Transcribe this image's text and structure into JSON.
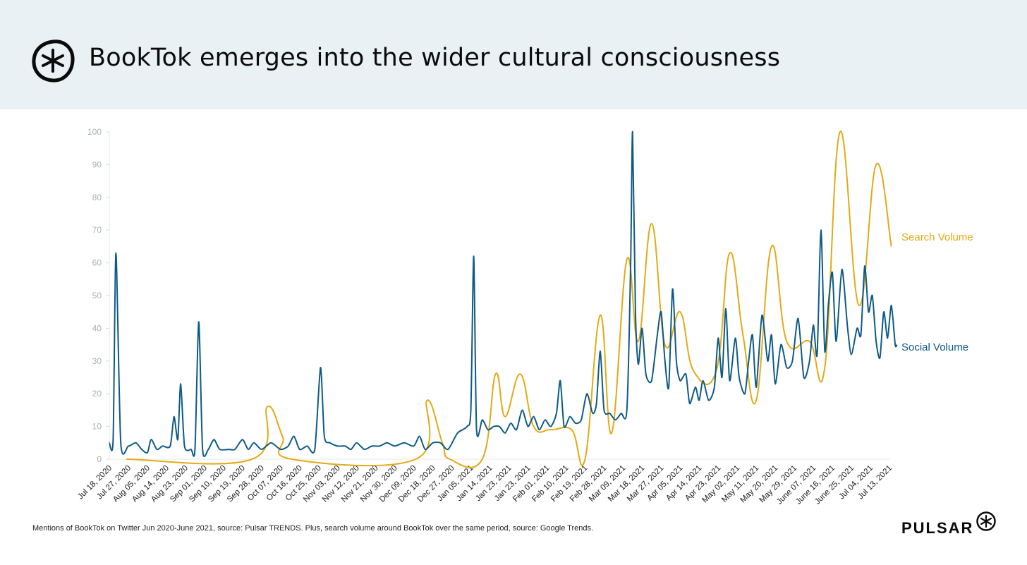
{
  "header": {
    "title": "BookTok emerges into the wider cultural consciousness",
    "logo_icon": "pulsar-burst-logo-icon"
  },
  "footer": {
    "note": "Mentions of BookTok on Twitter Jun 2020-June 2021, source: Pulsar TRENDS. Plus, search volume around BookTok over the same period, source: Google Trends.",
    "brand": "PULSAR",
    "brand_icon": "pulsar-burst-icon"
  },
  "colors": {
    "search": "#e2aa14",
    "social": "#0e5a85",
    "header_bg": "#e9f1f4"
  },
  "chart_data": {
    "type": "line",
    "ylim": [
      0,
      100
    ],
    "yticks": [
      0,
      10,
      20,
      30,
      40,
      50,
      60,
      70,
      80,
      90,
      100
    ],
    "xlabels": [
      "Jul 18, 2020",
      "Jul 27, 2020",
      "Aug 05, 2020",
      "Aug 14, 2020",
      "Aug 23, 2020",
      "Sep 01, 2020",
      "Sep 10, 2020",
      "Sep 19, 2020",
      "Sep 28, 2020",
      "Oct 07, 2020",
      "Oct 16, 2020",
      "Oct 25, 2020",
      "Nov 03, 2020",
      "Nov 12, 2020",
      "Nov 21, 2020",
      "Nov 30, 2020",
      "Dec 09, 2020",
      "Dec 18, 2020",
      "Dec 27, 2020",
      "Jan 05, 2021",
      "Jan 14, 2021",
      "Jan 23, 2021",
      "Jan 23, 2021",
      "Feb 01, 2021",
      "Feb 10, 2021",
      "Feb 19, 2021",
      "Feb 28, 2021",
      "Mar 09, 2021",
      "Mar 18, 2021",
      "Mar 27, 2021",
      "Apr 05, 2021",
      "Apr 14, 2021",
      "Apr 23, 2021",
      "May 02, 2021",
      "May 11, 2021",
      "May 20, 2021",
      "May 29, 2021",
      "June 07, 2021",
      "June 16, 2021",
      "June 25, 2021",
      "Jul 04, 2021",
      "Jul 13, 2021"
    ],
    "grid": false,
    "legend": "right",
    "series": [
      {
        "name": "Search Volume",
        "color": "#e2aa14",
        "points": [
          [
            0.9,
            0
          ],
          [
            7.5,
            0
          ],
          [
            8.3,
            16
          ],
          [
            9.1,
            7
          ],
          [
            9.6,
            0
          ],
          [
            16.1,
            0
          ],
          [
            16.7,
            18
          ],
          [
            17.5,
            5
          ],
          [
            17.9,
            0
          ],
          [
            19.6,
            0
          ],
          [
            20.3,
            26
          ],
          [
            20.8,
            13
          ],
          [
            21.6,
            26
          ],
          [
            22.3,
            10
          ],
          [
            23.2,
            9
          ],
          [
            24.3,
            9
          ],
          [
            25.0,
            0
          ],
          [
            25.8,
            44
          ],
          [
            26.4,
            8
          ],
          [
            27.2,
            61
          ],
          [
            27.8,
            36
          ],
          [
            28.5,
            72
          ],
          [
            29.2,
            35
          ],
          [
            30.0,
            45
          ],
          [
            30.7,
            27
          ],
          [
            31.9,
            27
          ],
          [
            32.6,
            63
          ],
          [
            33.3,
            38
          ],
          [
            34.0,
            18
          ],
          [
            34.8,
            65
          ],
          [
            35.6,
            36
          ],
          [
            36.8,
            36
          ],
          [
            37.6,
            28
          ],
          [
            38.4,
            100
          ],
          [
            39.4,
            47
          ],
          [
            40.3,
            90
          ],
          [
            41.1,
            65
          ]
        ]
      },
      {
        "name": "Social Volume",
        "color": "#0e5a85",
        "points": [
          [
            0.0,
            5
          ],
          [
            0.2,
            6
          ],
          [
            0.35,
            63
          ],
          [
            0.6,
            5
          ],
          [
            1.0,
            4
          ],
          [
            1.4,
            5
          ],
          [
            1.7,
            3
          ],
          [
            2.0,
            2
          ],
          [
            2.2,
            6
          ],
          [
            2.5,
            3
          ],
          [
            2.8,
            4
          ],
          [
            3.2,
            4
          ],
          [
            3.4,
            13
          ],
          [
            3.6,
            6
          ],
          [
            3.75,
            23
          ],
          [
            3.95,
            4
          ],
          [
            4.3,
            3
          ],
          [
            4.5,
            3
          ],
          [
            4.7,
            42
          ],
          [
            4.9,
            3
          ],
          [
            5.2,
            3
          ],
          [
            5.5,
            6
          ],
          [
            5.8,
            3
          ],
          [
            6.3,
            3
          ],
          [
            6.6,
            3
          ],
          [
            7.0,
            6
          ],
          [
            7.3,
            3
          ],
          [
            7.6,
            5
          ],
          [
            8.0,
            3
          ],
          [
            8.5,
            5
          ],
          [
            9.0,
            3
          ],
          [
            9.4,
            4
          ],
          [
            9.7,
            7
          ],
          [
            10.0,
            3
          ],
          [
            10.4,
            4
          ],
          [
            10.8,
            3
          ],
          [
            11.1,
            28
          ],
          [
            11.3,
            7
          ],
          [
            11.6,
            5
          ],
          [
            12.0,
            4
          ],
          [
            12.4,
            4
          ],
          [
            12.7,
            3
          ],
          [
            13.0,
            5
          ],
          [
            13.4,
            3
          ],
          [
            13.8,
            4
          ],
          [
            14.2,
            4
          ],
          [
            14.6,
            5
          ],
          [
            15.0,
            4
          ],
          [
            15.5,
            5
          ],
          [
            16.0,
            4
          ],
          [
            16.3,
            7
          ],
          [
            16.6,
            3
          ],
          [
            17.0,
            5
          ],
          [
            17.4,
            5
          ],
          [
            17.8,
            3
          ],
          [
            18.3,
            8
          ],
          [
            18.8,
            10
          ],
          [
            19.0,
            15
          ],
          [
            19.15,
            62
          ],
          [
            19.3,
            9
          ],
          [
            19.6,
            12
          ],
          [
            19.9,
            9
          ],
          [
            20.2,
            10
          ],
          [
            20.5,
            10
          ],
          [
            20.8,
            8
          ],
          [
            21.1,
            11
          ],
          [
            21.4,
            9
          ],
          [
            21.7,
            15
          ],
          [
            22.0,
            10
          ],
          [
            22.3,
            13
          ],
          [
            22.6,
            9
          ],
          [
            22.9,
            12
          ],
          [
            23.2,
            10
          ],
          [
            23.5,
            14
          ],
          [
            23.7,
            24
          ],
          [
            23.9,
            10
          ],
          [
            24.2,
            13
          ],
          [
            24.5,
            11
          ],
          [
            24.8,
            12
          ],
          [
            25.1,
            20
          ],
          [
            25.4,
            14
          ],
          [
            25.6,
            17
          ],
          [
            25.8,
            33
          ],
          [
            26.0,
            15
          ],
          [
            26.3,
            14
          ],
          [
            26.6,
            12
          ],
          [
            26.9,
            14
          ],
          [
            27.2,
            15
          ],
          [
            27.4,
            60
          ],
          [
            27.5,
            100
          ],
          [
            27.65,
            45
          ],
          [
            27.8,
            29
          ],
          [
            28.0,
            40
          ],
          [
            28.2,
            26
          ],
          [
            28.5,
            24
          ],
          [
            28.8,
            38
          ],
          [
            29.0,
            45
          ],
          [
            29.2,
            30
          ],
          [
            29.4,
            22
          ],
          [
            29.6,
            52
          ],
          [
            29.8,
            30
          ],
          [
            30.0,
            24
          ],
          [
            30.3,
            26
          ],
          [
            30.5,
            17
          ],
          [
            30.8,
            22
          ],
          [
            31.0,
            18
          ],
          [
            31.2,
            24
          ],
          [
            31.5,
            18
          ],
          [
            31.8,
            22
          ],
          [
            32.0,
            37
          ],
          [
            32.2,
            25
          ],
          [
            32.4,
            46
          ],
          [
            32.6,
            24
          ],
          [
            32.9,
            37
          ],
          [
            33.1,
            25
          ],
          [
            33.4,
            20
          ],
          [
            33.6,
            30
          ],
          [
            33.8,
            38
          ],
          [
            34.0,
            22
          ],
          [
            34.3,
            44
          ],
          [
            34.6,
            30
          ],
          [
            34.8,
            38
          ],
          [
            35.0,
            23
          ],
          [
            35.3,
            35
          ],
          [
            35.6,
            28
          ],
          [
            35.9,
            30
          ],
          [
            36.2,
            43
          ],
          [
            36.5,
            25
          ],
          [
            36.8,
            30
          ],
          [
            37.0,
            41
          ],
          [
            37.2,
            32
          ],
          [
            37.4,
            70
          ],
          [
            37.6,
            33
          ],
          [
            37.8,
            48
          ],
          [
            38.0,
            57
          ],
          [
            38.2,
            36
          ],
          [
            38.5,
            58
          ],
          [
            38.8,
            40
          ],
          [
            39.0,
            32
          ],
          [
            39.3,
            40
          ],
          [
            39.5,
            38
          ],
          [
            39.7,
            59
          ],
          [
            39.9,
            45
          ],
          [
            40.1,
            50
          ],
          [
            40.3,
            36
          ],
          [
            40.5,
            31
          ],
          [
            40.7,
            45
          ],
          [
            40.9,
            37
          ],
          [
            41.1,
            47
          ],
          [
            41.3,
            35
          ],
          [
            41.4,
            35
          ]
        ]
      }
    ]
  }
}
